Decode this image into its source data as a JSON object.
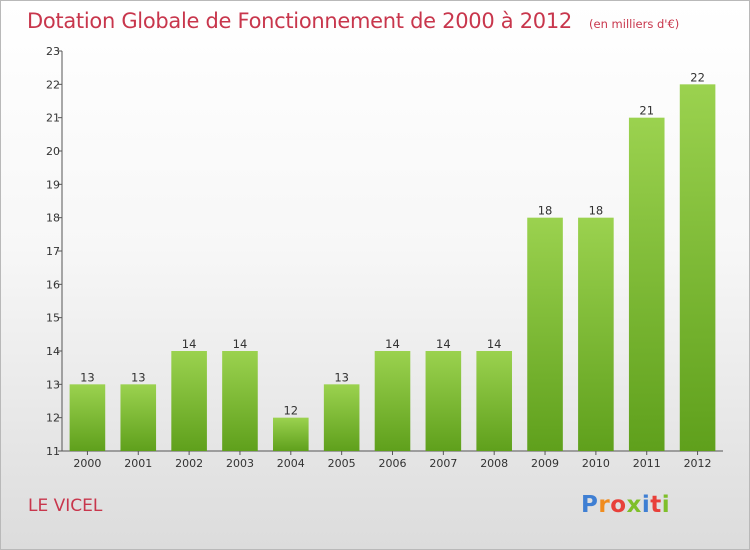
{
  "header": {
    "title": "Dotation Globale de Fonctionnement de 2000 à 2012",
    "subtitle": "(en milliers d'€)"
  },
  "footer": {
    "town": "LE VICEL",
    "logo_letters": [
      "P",
      "r",
      "o",
      "x",
      "i",
      "t",
      "i"
    ],
    "logo_colors": [
      "#3f7fd3",
      "#f08c1e",
      "#e8403a",
      "#7fbf2a",
      "#3f7fd3",
      "#e8403a",
      "#7fbf2a"
    ]
  },
  "chart_data": {
    "type": "bar",
    "title": "Dotation Globale de Fonctionnement de 2000 à 2012",
    "subtitle": "(en milliers d'€)",
    "xlabel": "",
    "ylabel": "",
    "categories": [
      "2000",
      "2001",
      "2002",
      "2003",
      "2004",
      "2005",
      "2006",
      "2007",
      "2008",
      "2009",
      "2010",
      "2011",
      "2012"
    ],
    "values": [
      13,
      13,
      14,
      14,
      12,
      13,
      14,
      14,
      14,
      18,
      18,
      21,
      22
    ],
    "ylim": [
      11,
      23
    ],
    "yticks": [
      11,
      12,
      13,
      14,
      15,
      16,
      17,
      18,
      19,
      20,
      21,
      22,
      23
    ],
    "grid": false,
    "bar_color_top": "#9bd24f",
    "bar_color_bottom": "#5fa01c"
  }
}
